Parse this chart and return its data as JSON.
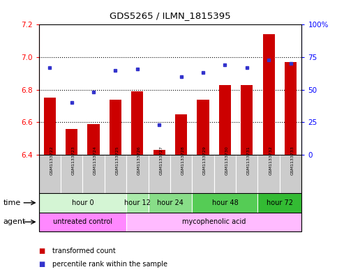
{
  "title": "GDS5265 / ILMN_1815395",
  "samples": [
    "GSM1133722",
    "GSM1133723",
    "GSM1133724",
    "GSM1133725",
    "GSM1133726",
    "GSM1133727",
    "GSM1133728",
    "GSM1133729",
    "GSM1133730",
    "GSM1133731",
    "GSM1133732",
    "GSM1133733"
  ],
  "bar_values": [
    6.75,
    6.56,
    6.59,
    6.74,
    6.79,
    6.43,
    6.65,
    6.74,
    6.83,
    6.83,
    7.14,
    6.97
  ],
  "dot_values": [
    67,
    40,
    48,
    65,
    66,
    23,
    60,
    63,
    69,
    67,
    73,
    70
  ],
  "ylim_left": [
    6.4,
    7.2
  ],
  "ylim_right": [
    0,
    100
  ],
  "yticks_left": [
    6.4,
    6.6,
    6.8,
    7.0,
    7.2
  ],
  "yticks_right": [
    0,
    25,
    50,
    75,
    100
  ],
  "ytick_labels_right": [
    "0",
    "25",
    "50",
    "75",
    "100%"
  ],
  "hlines": [
    6.6,
    6.8,
    7.0
  ],
  "bar_color": "#cc0000",
  "dot_color": "#3333cc",
  "time_groups_order": [
    "hour 0",
    "hour 12",
    "hour 24",
    "hour 48",
    "hour 72"
  ],
  "time_groups": {
    "hour 0": [
      0,
      1,
      2,
      3
    ],
    "hour 12": [
      4
    ],
    "hour 24": [
      5,
      6
    ],
    "hour 48": [
      7,
      8,
      9
    ],
    "hour 72": [
      10,
      11
    ]
  },
  "time_colors": {
    "hour 0": "#d4f5d4",
    "hour 12": "#aaeaaa",
    "hour 24": "#88dd88",
    "hour 48": "#55cc55",
    "hour 72": "#33bb33"
  },
  "agent_groups_order": [
    "untreated control",
    "mycophenolic acid"
  ],
  "agent_groups": {
    "untreated control": [
      0,
      1,
      2,
      3
    ],
    "mycophenolic acid": [
      4,
      5,
      6,
      7,
      8,
      9,
      10,
      11
    ]
  },
  "agent_color_untreated": "#ff88ff",
  "agent_color_treated": "#ffbbff",
  "background_color": "#ffffff",
  "plot_bg_color": "#ffffff",
  "legend_red_label": "transformed count",
  "legend_blue_label": "percentile rank within the sample",
  "sample_bg_color": "#cccccc",
  "border_color": "#000000"
}
